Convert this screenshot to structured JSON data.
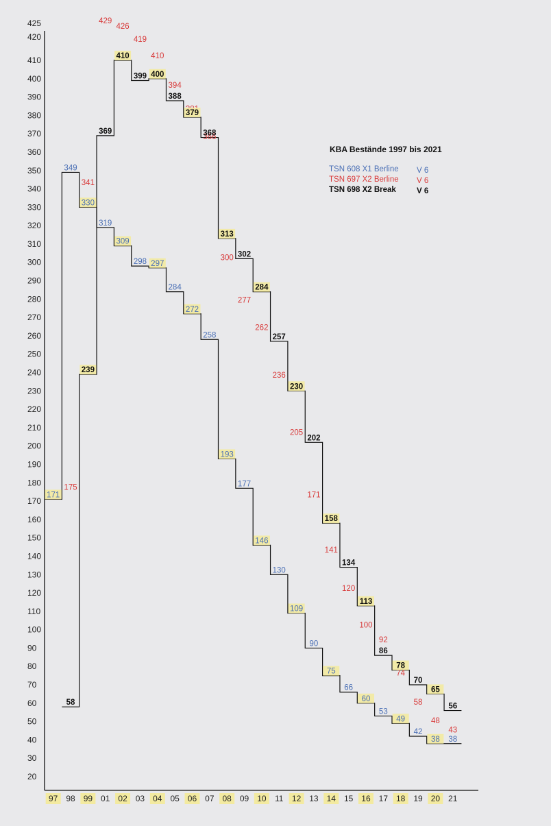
{
  "chart_data": {
    "type": "line",
    "step": true,
    "title": "KBA Bestände 1997 bis 2021",
    "xlabel": "",
    "ylabel": "",
    "ylim": [
      20,
      425
    ],
    "grid": false,
    "legend_position": "top-right",
    "y_ticks": [
      425,
      420,
      410,
      400,
      390,
      380,
      370,
      360,
      350,
      340,
      330,
      320,
      310,
      300,
      290,
      280,
      270,
      260,
      250,
      240,
      230,
      220,
      210,
      200,
      190,
      180,
      170,
      160,
      150,
      140,
      130,
      120,
      110,
      100,
      90,
      80,
      70,
      60,
      50,
      40,
      30,
      20
    ],
    "categories": [
      "97",
      "98",
      "99",
      "01",
      "02",
      "03",
      "04",
      "05",
      "06",
      "07",
      "08",
      "09",
      "10",
      "11",
      "12",
      "13",
      "14",
      "15",
      "16",
      "17",
      "18",
      "19",
      "20",
      "21"
    ],
    "highlighted_categories": [
      "97",
      "99",
      "02",
      "04",
      "06",
      "08",
      "10",
      "12",
      "14",
      "16",
      "18",
      "20"
    ],
    "series": [
      {
        "name": "TSN 608  X1 Berline",
        "engine": "V 6",
        "color": "#4a6fb5",
        "labels_highlighted_even": true,
        "x": [
          "97",
          "98",
          "99",
          "01",
          "02",
          "03",
          "04",
          "05",
          "06",
          "07",
          "08",
          "09",
          "10",
          "11",
          "12",
          "13",
          "14",
          "15",
          "16",
          "17",
          "18",
          "19",
          "20",
          "21"
        ],
        "values": [
          171,
          349,
          330,
          319,
          309,
          298,
          297,
          284,
          272,
          258,
          193,
          177,
          146,
          130,
          109,
          90,
          75,
          66,
          60,
          53,
          49,
          42,
          38,
          38
        ]
      },
      {
        "name": "TSN 697  X2 Berline",
        "engine": "V 6",
        "color": "#d83a3a",
        "x": [
          "98",
          "99",
          "01",
          "02",
          "03",
          "04",
          "05",
          "06",
          "07",
          "08",
          "09",
          "10",
          "11",
          "12",
          "13",
          "14",
          "15",
          "16",
          "17",
          "18",
          "19",
          "20",
          "21"
        ],
        "values": [
          175,
          341,
          429,
          426,
          419,
          410,
          394,
          381,
          366,
          300,
          277,
          262,
          236,
          205,
          171,
          141,
          120,
          100,
          92,
          74,
          58,
          48,
          43
        ]
      },
      {
        "name": "TSN 698  X2 Break",
        "engine": "V 6",
        "color": "#111111",
        "labels_highlighted_even": true,
        "x": [
          "98",
          "99",
          "01",
          "02",
          "03",
          "04",
          "05",
          "06",
          "07",
          "08",
          "09",
          "10",
          "11",
          "12",
          "13",
          "14",
          "15",
          "16",
          "17",
          "18",
          "19",
          "20",
          "21"
        ],
        "values": [
          58,
          239,
          369,
          410,
          399,
          400,
          388,
          379,
          368,
          313,
          302,
          284,
          257,
          230,
          202,
          158,
          134,
          113,
          86,
          78,
          70,
          65,
          56
        ]
      }
    ]
  }
}
